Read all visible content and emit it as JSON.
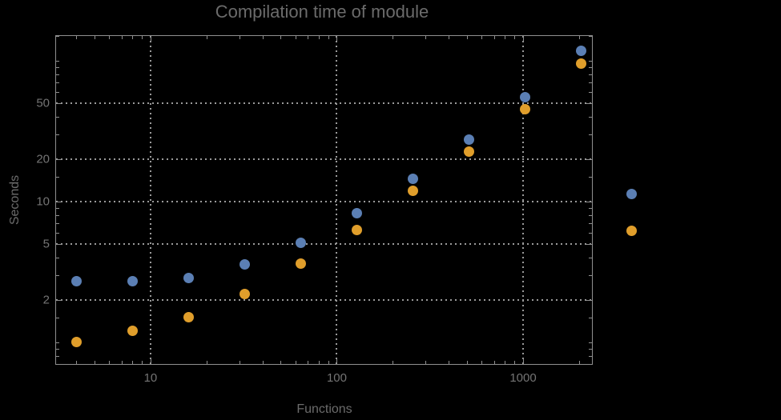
{
  "title": "Compilation time of module",
  "colors": {
    "background": "#000000",
    "frame": "#8f8f8f",
    "grid": "#9a9a9a",
    "title_text": "#6b6b6b",
    "tick_text": "#747474",
    "series_blue": "#5B7FB4",
    "series_orange": "#E09E2B"
  },
  "chart_data": {
    "type": "scatter",
    "title": "Compilation time of module",
    "xlabel": "Functions",
    "ylabel": "Seconds",
    "xscale": "log",
    "yscale": "log",
    "xlim": [
      3.08,
      2366
    ],
    "ylim": [
      0.69,
      152
    ],
    "grid": true,
    "x": [
      4,
      8,
      16,
      32,
      64,
      128,
      256,
      512,
      1024,
      2048
    ],
    "series": [
      {
        "name": "series-1-blue",
        "color": "#5B7FB4",
        "values": [
          2.7,
          2.7,
          2.85,
          3.55,
          5.05,
          8.2,
          14.4,
          27.5,
          55,
          117
        ]
      },
      {
        "name": "series-2-orange",
        "color": "#E09E2B",
        "values": [
          1.0,
          1.2,
          1.5,
          2.2,
          3.6,
          6.3,
          11.9,
          22.5,
          45.5,
          96
        ]
      }
    ],
    "x_ticks": [
      10,
      100,
      1000
    ],
    "x_tick_labels": [
      "10",
      "100",
      "1000"
    ],
    "x_minor_ticks": [
      4,
      5,
      6,
      7,
      8,
      9,
      20,
      30,
      40,
      50,
      60,
      70,
      80,
      90,
      200,
      300,
      400,
      500,
      600,
      700,
      800,
      900,
      2000
    ],
    "y_ticks": [
      2,
      5,
      10,
      20,
      50
    ],
    "y_tick_labels": [
      "2",
      "5",
      "10",
      "20",
      "50"
    ],
    "y_minor_ticks": [
      0.7,
      0.8,
      0.9,
      1,
      1.5,
      3,
      4,
      6,
      7,
      8,
      9,
      15,
      30,
      40,
      60,
      70,
      80,
      90,
      100,
      150
    ],
    "legend": {
      "position": "right-of-frame, vertically centered",
      "entries": [
        {
          "marker_color": "#5B7FB4",
          "label": ""
        },
        {
          "marker_color": "#E09E2B",
          "label": ""
        }
      ]
    }
  }
}
